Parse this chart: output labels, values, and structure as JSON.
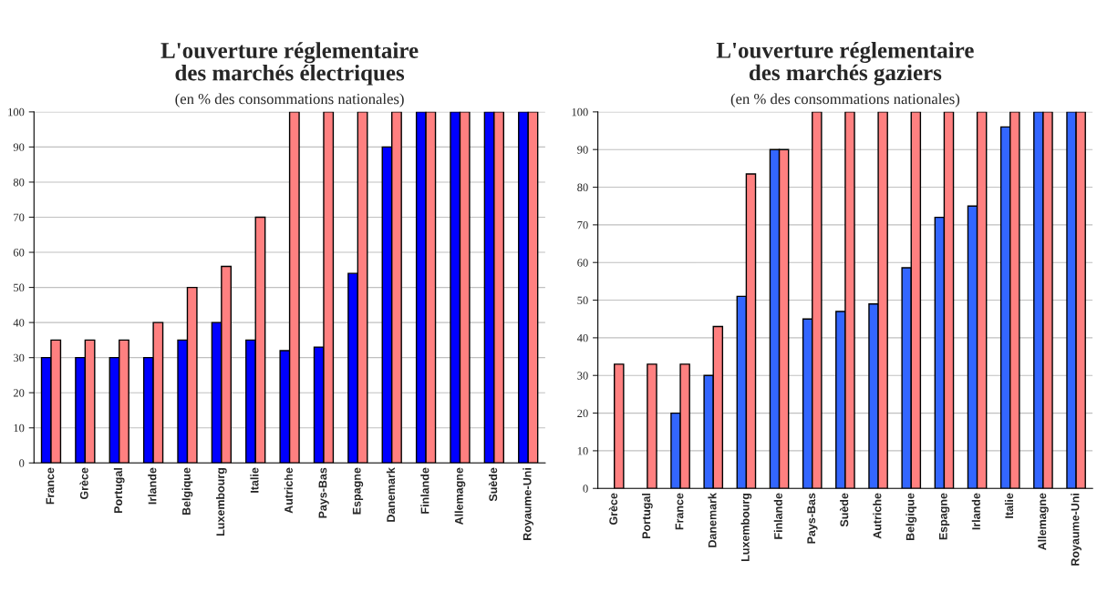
{
  "chart_data": [
    {
      "type": "bar",
      "title": "L'ouverture réglementaire\ndes marchés électriques",
      "subtitle": "(en % des consommations nationales)",
      "categories": [
        "France",
        "Grèce",
        "Portugal",
        "Irlande",
        "Belgique",
        "Luxembourg",
        "Italie",
        "Autriche",
        "Pays-Bas",
        "Espagne",
        "Danemark",
        "Finlande",
        "Allemagne",
        "Suède",
        "Royaume-Uni"
      ],
      "series": [
        {
          "color": "#0000ff",
          "values": [
            30,
            30,
            30,
            30,
            35,
            40,
            35,
            32,
            33,
            54,
            90,
            100,
            100,
            100,
            100
          ]
        },
        {
          "color": "#ff8080",
          "values": [
            35,
            35,
            35,
            40,
            50,
            56,
            70,
            100,
            100,
            100,
            100,
            100,
            100,
            100,
            100
          ]
        }
      ],
      "ylim": [
        0,
        100
      ],
      "yticks": [
        0,
        10,
        20,
        30,
        40,
        50,
        60,
        70,
        80,
        90,
        100
      ],
      "grid": "y",
      "legend": false
    },
    {
      "type": "bar",
      "title": "L'ouverture réglementaire\ndes marchés gaziers",
      "subtitle": "(en % des consommations nationales)",
      "categories": [
        "Grèce",
        "Portugal",
        "France",
        "Danemark",
        "Luxembourg",
        "Finlande",
        "Pays-Bas",
        "Suède",
        "Autriche",
        "Belgique",
        "Espagne",
        "Irlande",
        "Italie",
        "Allemagne",
        "Royaume-Uni"
      ],
      "series": [
        {
          "color": "#3366ff",
          "values": [
            null,
            null,
            20,
            30,
            51,
            90,
            45,
            47,
            49,
            58.6,
            72,
            75,
            96,
            100,
            100
          ]
        },
        {
          "color": "#ff8080",
          "values": [
            33,
            33,
            33,
            43,
            83.5,
            90,
            100,
            100,
            100,
            100,
            100,
            100,
            100,
            100,
            100
          ]
        }
      ],
      "ylim": [
        0,
        100
      ],
      "yticks": [
        0,
        10,
        20,
        30,
        40,
        50,
        60,
        70,
        80,
        90,
        100
      ],
      "grid": "y",
      "legend": false
    }
  ]
}
